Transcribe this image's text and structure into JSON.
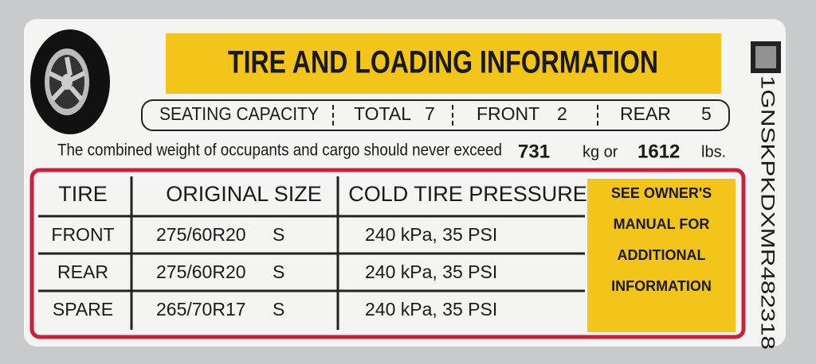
{
  "header": {
    "title": "TIRE AND LOADING INFORMATION"
  },
  "seating": {
    "label": "SEATING CAPACITY",
    "total_label": "TOTAL",
    "total": 7,
    "front_label": "FRONT",
    "front": 2,
    "rear_label": "REAR",
    "rear": 5
  },
  "weight": {
    "text": "The combined weight of occupants and cargo should never exceed",
    "kg": 731,
    "kg_unit": "kg or",
    "lbs": 1612,
    "lbs_unit": "lbs."
  },
  "table": {
    "headers": [
      "TIRE",
      "ORIGINAL SIZE",
      "COLD TIRE PRESSURE"
    ],
    "rows": [
      [
        "FRONT",
        "275/60R20",
        "S",
        "240 kPa, 35 PSI"
      ],
      [
        "REAR",
        "275/60R20",
        "S",
        "240 kPa, 35 PSI"
      ],
      [
        "SPARE",
        "265/70R17",
        "S",
        "240 kPa, 35 PSI"
      ]
    ]
  },
  "note": [
    "SEE OWNER'S",
    "MANUAL FOR",
    "ADDITIONAL",
    "INFORMATION"
  ],
  "vin": "1GNSKPKDXMR482318"
}
